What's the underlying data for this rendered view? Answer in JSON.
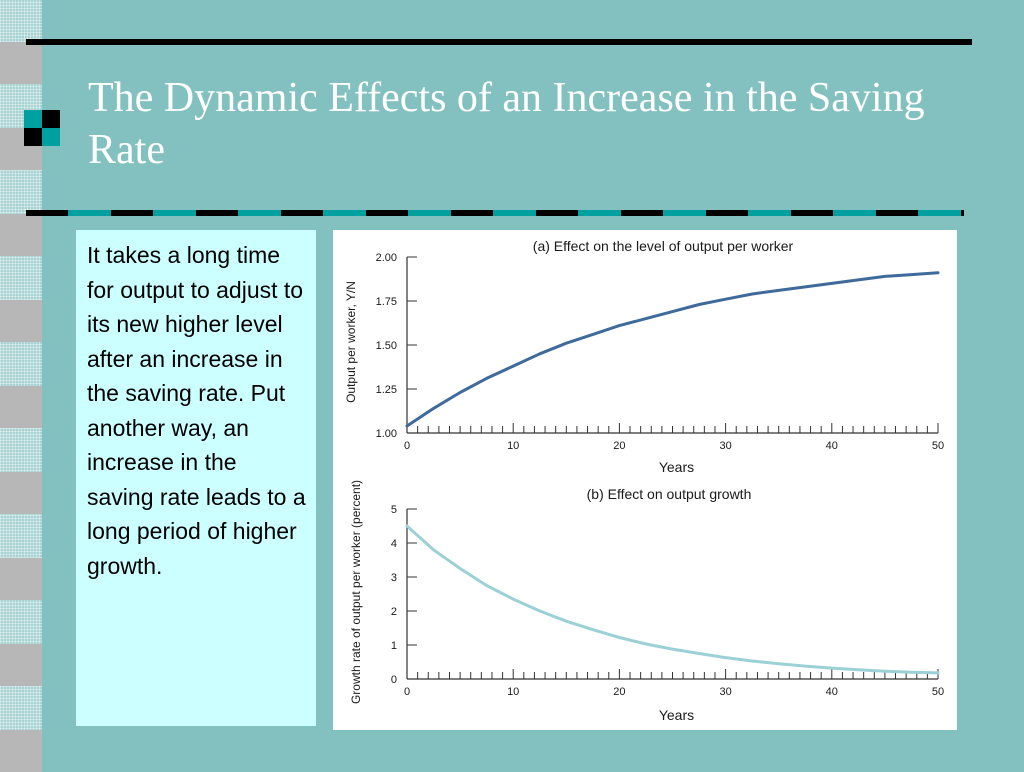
{
  "slide": {
    "title": "The Dynamic Effects of an Increase in the Saving Rate",
    "body": "It takes a long time for output to adjust to its new higher level after an increase in the saving rate. Put another way, an increase in the saving rate leads to a long period of higher growth.",
    "colors": {
      "background": "#83c0c0",
      "text_box": "#ccffff",
      "title_text": "#ffffff",
      "accent_teal": "#00a0a0",
      "rule_black": "#000000"
    }
  },
  "chart_data": [
    {
      "type": "line",
      "title": "(a) Effect on the level of output per worker",
      "xlabel": "Years",
      "ylabel": "Output per worker, Y/N",
      "xlim": [
        0,
        50
      ],
      "ylim": [
        1.0,
        2.0
      ],
      "x_ticks": [
        0,
        10,
        20,
        30,
        40,
        50
      ],
      "y_ticks": [
        "1.00",
        "1.25",
        "1.50",
        "1.75",
        "2.00"
      ],
      "grid": false,
      "series": [
        {
          "color": "#3e6b9c",
          "x": [
            0,
            2.5,
            5,
            7.5,
            10,
            12.5,
            15,
            17.5,
            20,
            22.5,
            25,
            27.5,
            30,
            32.5,
            35,
            37.5,
            40,
            42.5,
            45,
            47.5,
            50
          ],
          "y": [
            1.04,
            1.14,
            1.23,
            1.31,
            1.38,
            1.45,
            1.51,
            1.56,
            1.61,
            1.65,
            1.69,
            1.73,
            1.76,
            1.79,
            1.81,
            1.83,
            1.85,
            1.87,
            1.89,
            1.9,
            1.91
          ]
        }
      ]
    },
    {
      "type": "line",
      "title": "(b) Effect on output growth",
      "xlabel": "Years",
      "ylabel": "Growth rate of output per worker (percent)",
      "xlim": [
        0,
        50
      ],
      "ylim": [
        0,
        5
      ],
      "x_ticks": [
        0,
        10,
        20,
        30,
        40,
        50
      ],
      "y_ticks": [
        "0",
        "1",
        "2",
        "3",
        "4",
        "5"
      ],
      "grid": false,
      "series": [
        {
          "color": "#9bd1d6",
          "x": [
            0,
            2.5,
            5,
            7.5,
            10,
            12.5,
            15,
            17.5,
            20,
            22.5,
            25,
            27.5,
            30,
            32.5,
            35,
            37.5,
            40,
            42.5,
            45,
            47.5,
            50
          ],
          "y": [
            4.5,
            3.8,
            3.25,
            2.75,
            2.35,
            2.0,
            1.7,
            1.45,
            1.22,
            1.03,
            0.88,
            0.75,
            0.63,
            0.53,
            0.45,
            0.38,
            0.32,
            0.27,
            0.23,
            0.2,
            0.18
          ]
        }
      ]
    }
  ]
}
